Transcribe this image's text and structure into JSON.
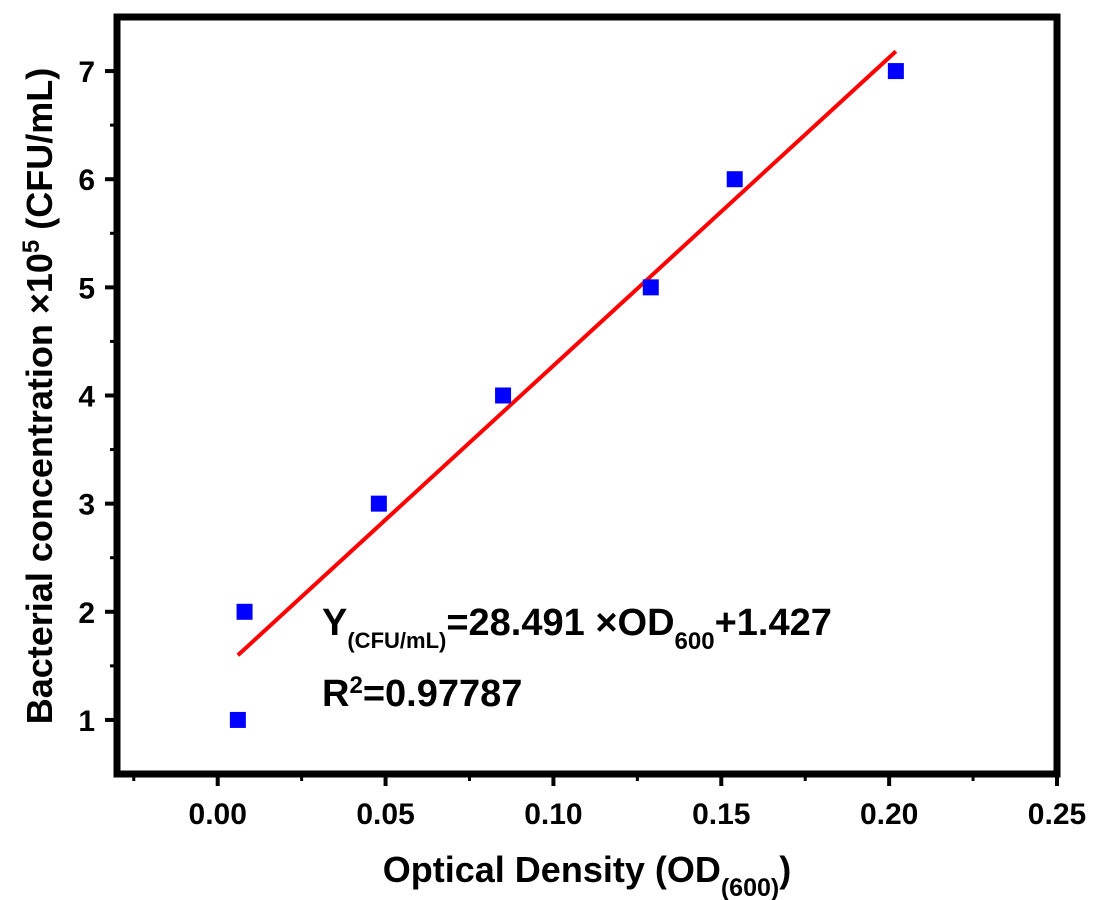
{
  "chart_data": {
    "type": "scatter",
    "xlabel": {
      "main": "Optical Density (OD",
      "sub": "(600)",
      "close": ")"
    },
    "ylabel": {
      "main": "Bacterial concentration ×10",
      "sup": "5",
      "unit": " (CFU/mL)"
    },
    "xlim": [
      -0.03,
      0.25
    ],
    "ylim": [
      0.5,
      7.5
    ],
    "xticks": [
      0.0,
      0.05,
      0.1,
      0.15,
      0.2,
      0.25
    ],
    "xtick_labels": [
      "0.00",
      "0.05",
      "0.10",
      "0.15",
      "0.20",
      "0.25"
    ],
    "yticks": [
      1,
      2,
      3,
      4,
      5,
      6,
      7
    ],
    "ytick_labels": [
      "1",
      "2",
      "3",
      "4",
      "5",
      "6",
      "7"
    ],
    "grid": false,
    "points": [
      {
        "x": 0.006,
        "y": 1
      },
      {
        "x": 0.008,
        "y": 2
      },
      {
        "x": 0.048,
        "y": 3
      },
      {
        "x": 0.085,
        "y": 4
      },
      {
        "x": 0.129,
        "y": 5
      },
      {
        "x": 0.154,
        "y": 6
      },
      {
        "x": 0.202,
        "y": 7
      }
    ],
    "point_color": "#0000ff",
    "fit": {
      "slope": 28.491,
      "intercept": 1.427,
      "x_range": [
        0.006,
        0.202
      ],
      "color": "#ff0000"
    },
    "annotation": {
      "eq_y": "Y",
      "eq_sub1": "(CFU/mL)",
      "eq_mid": "=28.491 ×OD",
      "eq_sub2": "600",
      "eq_end": "+1.427",
      "r2_r": "R",
      "r2_sup": "2",
      "r2_val": "=0.97787"
    }
  }
}
